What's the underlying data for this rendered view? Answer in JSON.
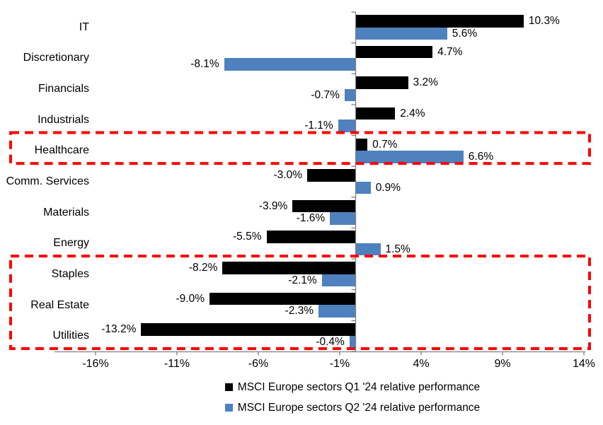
{
  "chart_data": {
    "type": "bar",
    "orientation": "horizontal_grouped",
    "title": "",
    "categories": [
      "IT",
      "Discretionary",
      "Financials",
      "Industrials",
      "Healthcare",
      "Comm. Services",
      "Materials",
      "Energy",
      "Staples",
      "Real Estate",
      "Utilities"
    ],
    "series": [
      {
        "name": "MSCI Europe sectors Q1 '24 relative performance",
        "color": "#000000",
        "values": [
          10.3,
          4.7,
          3.2,
          2.4,
          0.7,
          -3.0,
          -3.9,
          -5.5,
          -8.2,
          -9.0,
          -13.2
        ],
        "labels": [
          "10.3%",
          "4.7%",
          "3.2%",
          "2.4%",
          "0.7%",
          "-3.0%",
          "-3.9%",
          "-5.5%",
          "-8.2%",
          "-9.0%",
          "-13.2%"
        ]
      },
      {
        "name": "MSCI Europe sectors Q2 '24 relative performance",
        "color": "#4E81BD",
        "values": [
          5.6,
          -8.1,
          -0.7,
          -1.1,
          6.6,
          0.9,
          -1.6,
          1.5,
          -2.1,
          -2.3,
          -0.4
        ],
        "labels": [
          "5.6%",
          "-8.1%",
          "-0.7%",
          "-1.1%",
          "6.6%",
          "0.9%",
          "-1.6%",
          "1.5%",
          "-2.1%",
          "-2.3%",
          "-0.4%"
        ]
      }
    ],
    "x_axis": {
      "tick_labels": [
        "-16%",
        "-11%",
        "-6%",
        "-1%",
        "4%",
        "9%",
        "14%"
      ],
      "tick_values": [
        -16,
        -11,
        -6,
        -1,
        4,
        9,
        14
      ],
      "range": [
        -18.5,
        14.6
      ],
      "grid": false
    },
    "legend_position": "bottom",
    "highlights": [
      {
        "label": "healthcare-box",
        "from_category": "Healthcare",
        "to_category": "Healthcare",
        "color": "#FF0000",
        "style": "dashed"
      },
      {
        "label": "defensives-box",
        "from_category": "Staples",
        "to_category": "Utilities",
        "color": "#FF0000",
        "style": "dashed"
      }
    ],
    "colors": {
      "axis": "#808080",
      "background": "#FFFFFF",
      "text": "#000000"
    }
  }
}
